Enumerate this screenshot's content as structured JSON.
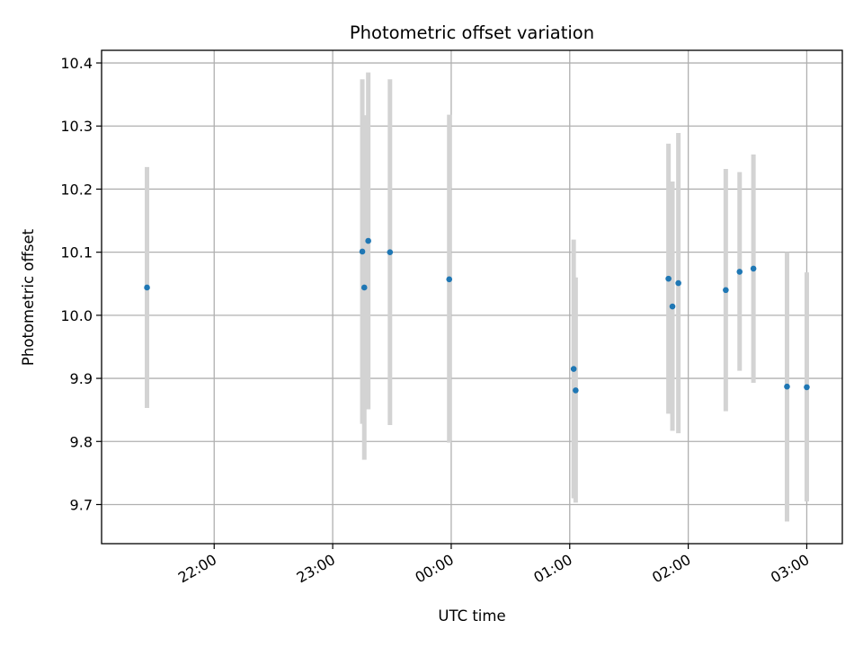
{
  "chart_data": {
    "type": "scatter",
    "title": "Photometric offset variation",
    "xlabel": "UTC time",
    "ylabel": "Photometric offset",
    "x_axis": "time",
    "xlim": [
      "21:03",
      "03:18"
    ],
    "ylim": [
      9.638,
      10.42
    ],
    "grid": true,
    "x_ticks": [
      "22:00",
      "23:00",
      "00:00",
      "01:00",
      "02:00",
      "03:00"
    ],
    "y_ticks": [
      "9.7",
      "9.8",
      "9.9",
      "10.0",
      "10.1",
      "10.2",
      "10.3",
      "10.4"
    ],
    "colors": {
      "points": "#1f77b4",
      "errorbars": "#d3d3d3",
      "grid": "#b0b0b0"
    },
    "series": [
      {
        "points": [
          {
            "time": "21:26",
            "y": 10.044,
            "ylow": 9.853,
            "yhigh": 10.235
          },
          {
            "time": "23:15",
            "y": 10.101,
            "ylow": 9.828,
            "yhigh": 10.374
          },
          {
            "time": "23:16",
            "y": 10.044,
            "ylow": 9.771,
            "yhigh": 10.317
          },
          {
            "time": "23:18",
            "y": 10.118,
            "ylow": 9.851,
            "yhigh": 10.385
          },
          {
            "time": "23:29",
            "y": 10.1,
            "ylow": 9.826,
            "yhigh": 10.374
          },
          {
            "time": "23:59",
            "y": 10.057,
            "ylow": 9.798,
            "yhigh": 10.318
          },
          {
            "time": "01:02",
            "y": 9.915,
            "ylow": 9.71,
            "yhigh": 10.12
          },
          {
            "time": "01:03",
            "y": 9.881,
            "ylow": 9.703,
            "yhigh": 10.06
          },
          {
            "time": "01:50",
            "y": 10.058,
            "ylow": 9.844,
            "yhigh": 10.272
          },
          {
            "time": "01:52",
            "y": 10.014,
            "ylow": 9.817,
            "yhigh": 10.212
          },
          {
            "time": "01:55",
            "y": 10.051,
            "ylow": 9.813,
            "yhigh": 10.289
          },
          {
            "time": "02:19",
            "y": 10.04,
            "ylow": 9.848,
            "yhigh": 10.232
          },
          {
            "time": "02:26",
            "y": 10.069,
            "ylow": 9.912,
            "yhigh": 10.227
          },
          {
            "time": "02:33",
            "y": 10.074,
            "ylow": 9.893,
            "yhigh": 10.255
          },
          {
            "time": "02:50",
            "y": 9.887,
            "ylow": 9.673,
            "yhigh": 10.1
          },
          {
            "time": "03:00",
            "y": 9.886,
            "ylow": 9.705,
            "yhigh": 10.068
          }
        ]
      }
    ]
  }
}
